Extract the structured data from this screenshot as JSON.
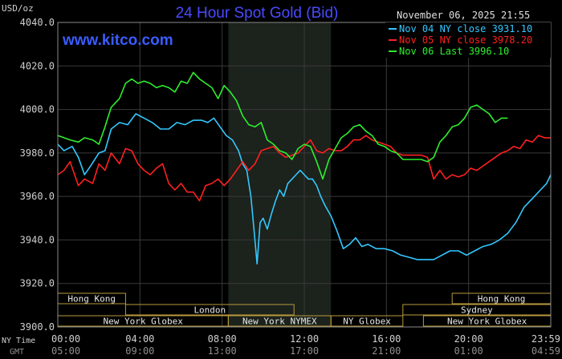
{
  "chart_data": {
    "type": "line",
    "title": "24 Hour Spot Gold (Bid)",
    "watermark": "www.kitco.com",
    "unit_label": "USD/oz",
    "date_label": "November 06, 2025 21:55",
    "ylim": [
      3900,
      4040
    ],
    "y_ticks": [
      "4040.0",
      "4020.0",
      "4000.0",
      "3980.0",
      "3960.0",
      "3940.0",
      "3920.0",
      "3900.0"
    ],
    "y_tick_values": [
      4040,
      4020,
      4000,
      3980,
      3960,
      3940,
      3920,
      3900
    ],
    "xlim_hours": [
      0,
      24
    ],
    "x_ticks_ny": [
      "00:00",
      "04:00",
      "08:00",
      "12:00",
      "16:00",
      "20:00",
      "23:59"
    ],
    "x_ticks_gmt": [
      "05:00",
      "09:00",
      "13:00",
      "17:00",
      "21:00",
      "01:00",
      "04:59"
    ],
    "x_tick_hours": [
      0,
      4,
      8,
      12,
      16,
      20,
      24
    ],
    "row_label_ny": "NY Time",
    "row_label_gmt": "GMT",
    "shaded_session_hours": [
      8.3,
      13.3
    ],
    "grid": true,
    "legend_position": "top-right",
    "colors": {
      "background": "#000000",
      "plot_area": "#000000",
      "grid": "#3a3a3a",
      "axis_text": "#cfcfcf",
      "title": "#4a4aff",
      "watermark": "#3a5cff",
      "shade": "#1c221c",
      "market_box": "#b89a3c",
      "market_text": "#e8e8e8"
    },
    "markets": [
      {
        "name": "Hong Kong",
        "start": 0,
        "end": 3.3,
        "row": 0
      },
      {
        "name": "Hong Kong",
        "start": 19.2,
        "end": 24,
        "row": 0
      },
      {
        "name": "London",
        "start": 3.3,
        "end": 11.5,
        "row": 1
      },
      {
        "name": "Sydney",
        "start": 16.8,
        "end": 24,
        "row": 1
      },
      {
        "name": "New York Globex",
        "start": 0,
        "end": 8.3,
        "row": 2
      },
      {
        "name": "New York NYMEX",
        "start": 8.3,
        "end": 13.3,
        "row": 2
      },
      {
        "name": "NY Globex",
        "start": 13.3,
        "end": 16.8,
        "row": 2
      },
      {
        "name": "New York Globex",
        "start": 17.8,
        "end": 24,
        "row": 2
      }
    ],
    "series": [
      {
        "name": "Nov 04 NY close 3931.10",
        "color": "#33c8ff",
        "x": [
          0,
          0.3,
          0.7,
          1,
          1.3,
          1.6,
          2,
          2.3,
          2.6,
          3,
          3.4,
          3.8,
          4.2,
          4.6,
          5,
          5.4,
          5.8,
          6.2,
          6.6,
          7,
          7.3,
          7.6,
          7.9,
          8.2,
          8.5,
          8.8,
          9.0,
          9.2,
          9.4,
          9.55,
          9.7,
          9.85,
          10.0,
          10.2,
          10.4,
          10.6,
          10.8,
          11.0,
          11.2,
          11.4,
          11.6,
          11.8,
          12.0,
          12.2,
          12.4,
          12.6,
          12.8,
          13.0,
          13.3,
          13.6,
          13.9,
          14.2,
          14.5,
          14.8,
          15.1,
          15.5,
          15.9,
          16.3,
          16.7,
          17.1,
          17.5,
          17.9,
          18.3,
          18.7,
          19.1,
          19.5,
          19.9,
          20.3,
          20.7,
          21.1,
          21.5,
          21.9,
          22.3,
          22.7,
          23.1,
          23.5,
          23.8,
          24
        ],
        "values": [
          3984,
          3981,
          3983,
          3978,
          3970,
          3974,
          3980,
          3981,
          3991,
          3994,
          3993,
          3998,
          3996,
          3994,
          3991,
          3991,
          3994,
          3993,
          3995,
          3995,
          3994,
          3996,
          3992,
          3988,
          3986,
          3981,
          3975,
          3972,
          3960,
          3945,
          3929,
          3948,
          3950,
          3945,
          3952,
          3958,
          3963,
          3960,
          3966,
          3968,
          3970,
          3972,
          3970,
          3968,
          3968,
          3965,
          3960,
          3956,
          3951,
          3944,
          3936,
          3938,
          3941,
          3937,
          3938,
          3936,
          3936,
          3935,
          3933,
          3932,
          3931,
          3931,
          3931,
          3933,
          3935,
          3935,
          3933,
          3935,
          3937,
          3938,
          3940,
          3943,
          3948,
          3955,
          3959,
          3963,
          3966,
          3970
        ]
      },
      {
        "name": "Nov 05 NY close 3978.20",
        "color": "#ff2020",
        "x": [
          0,
          0.3,
          0.6,
          1,
          1.3,
          1.7,
          2,
          2.3,
          2.6,
          3,
          3.3,
          3.6,
          3.9,
          4.2,
          4.5,
          4.8,
          5.1,
          5.4,
          5.7,
          6.0,
          6.3,
          6.6,
          6.9,
          7.2,
          7.5,
          7.8,
          8.1,
          8.4,
          8.7,
          9.0,
          9.3,
          9.6,
          9.9,
          10.2,
          10.5,
          10.8,
          11.1,
          11.4,
          11.7,
          12.0,
          12.3,
          12.6,
          12.9,
          13.2,
          13.5,
          13.8,
          14.1,
          14.4,
          14.7,
          15.0,
          15.3,
          15.6,
          15.9,
          16.2,
          16.5,
          16.8,
          17.1,
          17.4,
          17.7,
          18.0,
          18.3,
          18.6,
          18.9,
          19.2,
          19.5,
          19.8,
          20.1,
          20.4,
          20.7,
          21.0,
          21.3,
          21.6,
          21.9,
          22.2,
          22.5,
          22.8,
          23.1,
          23.4,
          23.7,
          24
        ],
        "values": [
          3970,
          3972,
          3976,
          3965,
          3968,
          3966,
          3975,
          3972,
          3980,
          3975,
          3982,
          3981,
          3975,
          3972,
          3970,
          3973,
          3975,
          3966,
          3963,
          3966,
          3962,
          3962,
          3958,
          3965,
          3966,
          3968,
          3965,
          3968,
          3972,
          3976,
          3972,
          3975,
          3981,
          3982,
          3983,
          3980,
          3978,
          3979,
          3980,
          3983,
          3986,
          3981,
          3980,
          3982,
          3981,
          3981,
          3983,
          3986,
          3986,
          3988,
          3986,
          3985,
          3984,
          3983,
          3980,
          3979,
          3979,
          3979,
          3979,
          3978,
          3968,
          3972,
          3968,
          3970,
          3969,
          3970,
          3973,
          3972,
          3974,
          3976,
          3978,
          3980,
          3981,
          3983,
          3982,
          3986,
          3985,
          3988,
          3987,
          3987
        ]
      },
      {
        "name": "Nov 06 Last 3996.10",
        "color": "#2eef2e",
        "x": [
          0,
          0.3,
          0.6,
          1,
          1.3,
          1.7,
          2.0,
          2.3,
          2.6,
          3.0,
          3.3,
          3.6,
          3.9,
          4.2,
          4.5,
          4.8,
          5.1,
          5.4,
          5.7,
          6.0,
          6.3,
          6.6,
          6.9,
          7.2,
          7.5,
          7.8,
          8.1,
          8.4,
          8.7,
          9.0,
          9.3,
          9.6,
          9.9,
          10.2,
          10.5,
          10.8,
          11.1,
          11.4,
          11.7,
          12.0,
          12.3,
          12.6,
          12.9,
          13.2,
          13.5,
          13.8,
          14.1,
          14.4,
          14.7,
          15.0,
          15.3,
          15.6,
          15.9,
          16.2,
          16.5,
          16.8,
          17.1,
          17.4,
          17.7,
          18.0,
          18.3,
          18.6,
          18.9,
          19.2,
          19.5,
          19.8,
          20.1,
          20.4,
          20.7,
          21.0,
          21.3,
          21.6,
          21.9
        ],
        "values": [
          3988,
          3987,
          3986,
          3985,
          3987,
          3986,
          3984,
          3992,
          4001,
          4005,
          4012,
          4014,
          4012,
          4013,
          4012,
          4010,
          4011,
          4010,
          4008,
          4013,
          4012,
          4017,
          4014,
          4012,
          4010,
          4005,
          4011,
          4008,
          4004,
          3997,
          3993,
          3992,
          3994,
          3986,
          3984,
          3981,
          3980,
          3977,
          3982,
          3984,
          3983,
          3976,
          3968,
          3977,
          3982,
          3987,
          3989,
          3992,
          3993,
          3990,
          3988,
          3984,
          3983,
          3981,
          3980,
          3977,
          3977,
          3977,
          3977,
          3976,
          3978,
          3985,
          3988,
          3992,
          3993,
          3996,
          4001,
          4002,
          4000,
          3998,
          3994,
          3996,
          3996
        ]
      }
    ]
  }
}
